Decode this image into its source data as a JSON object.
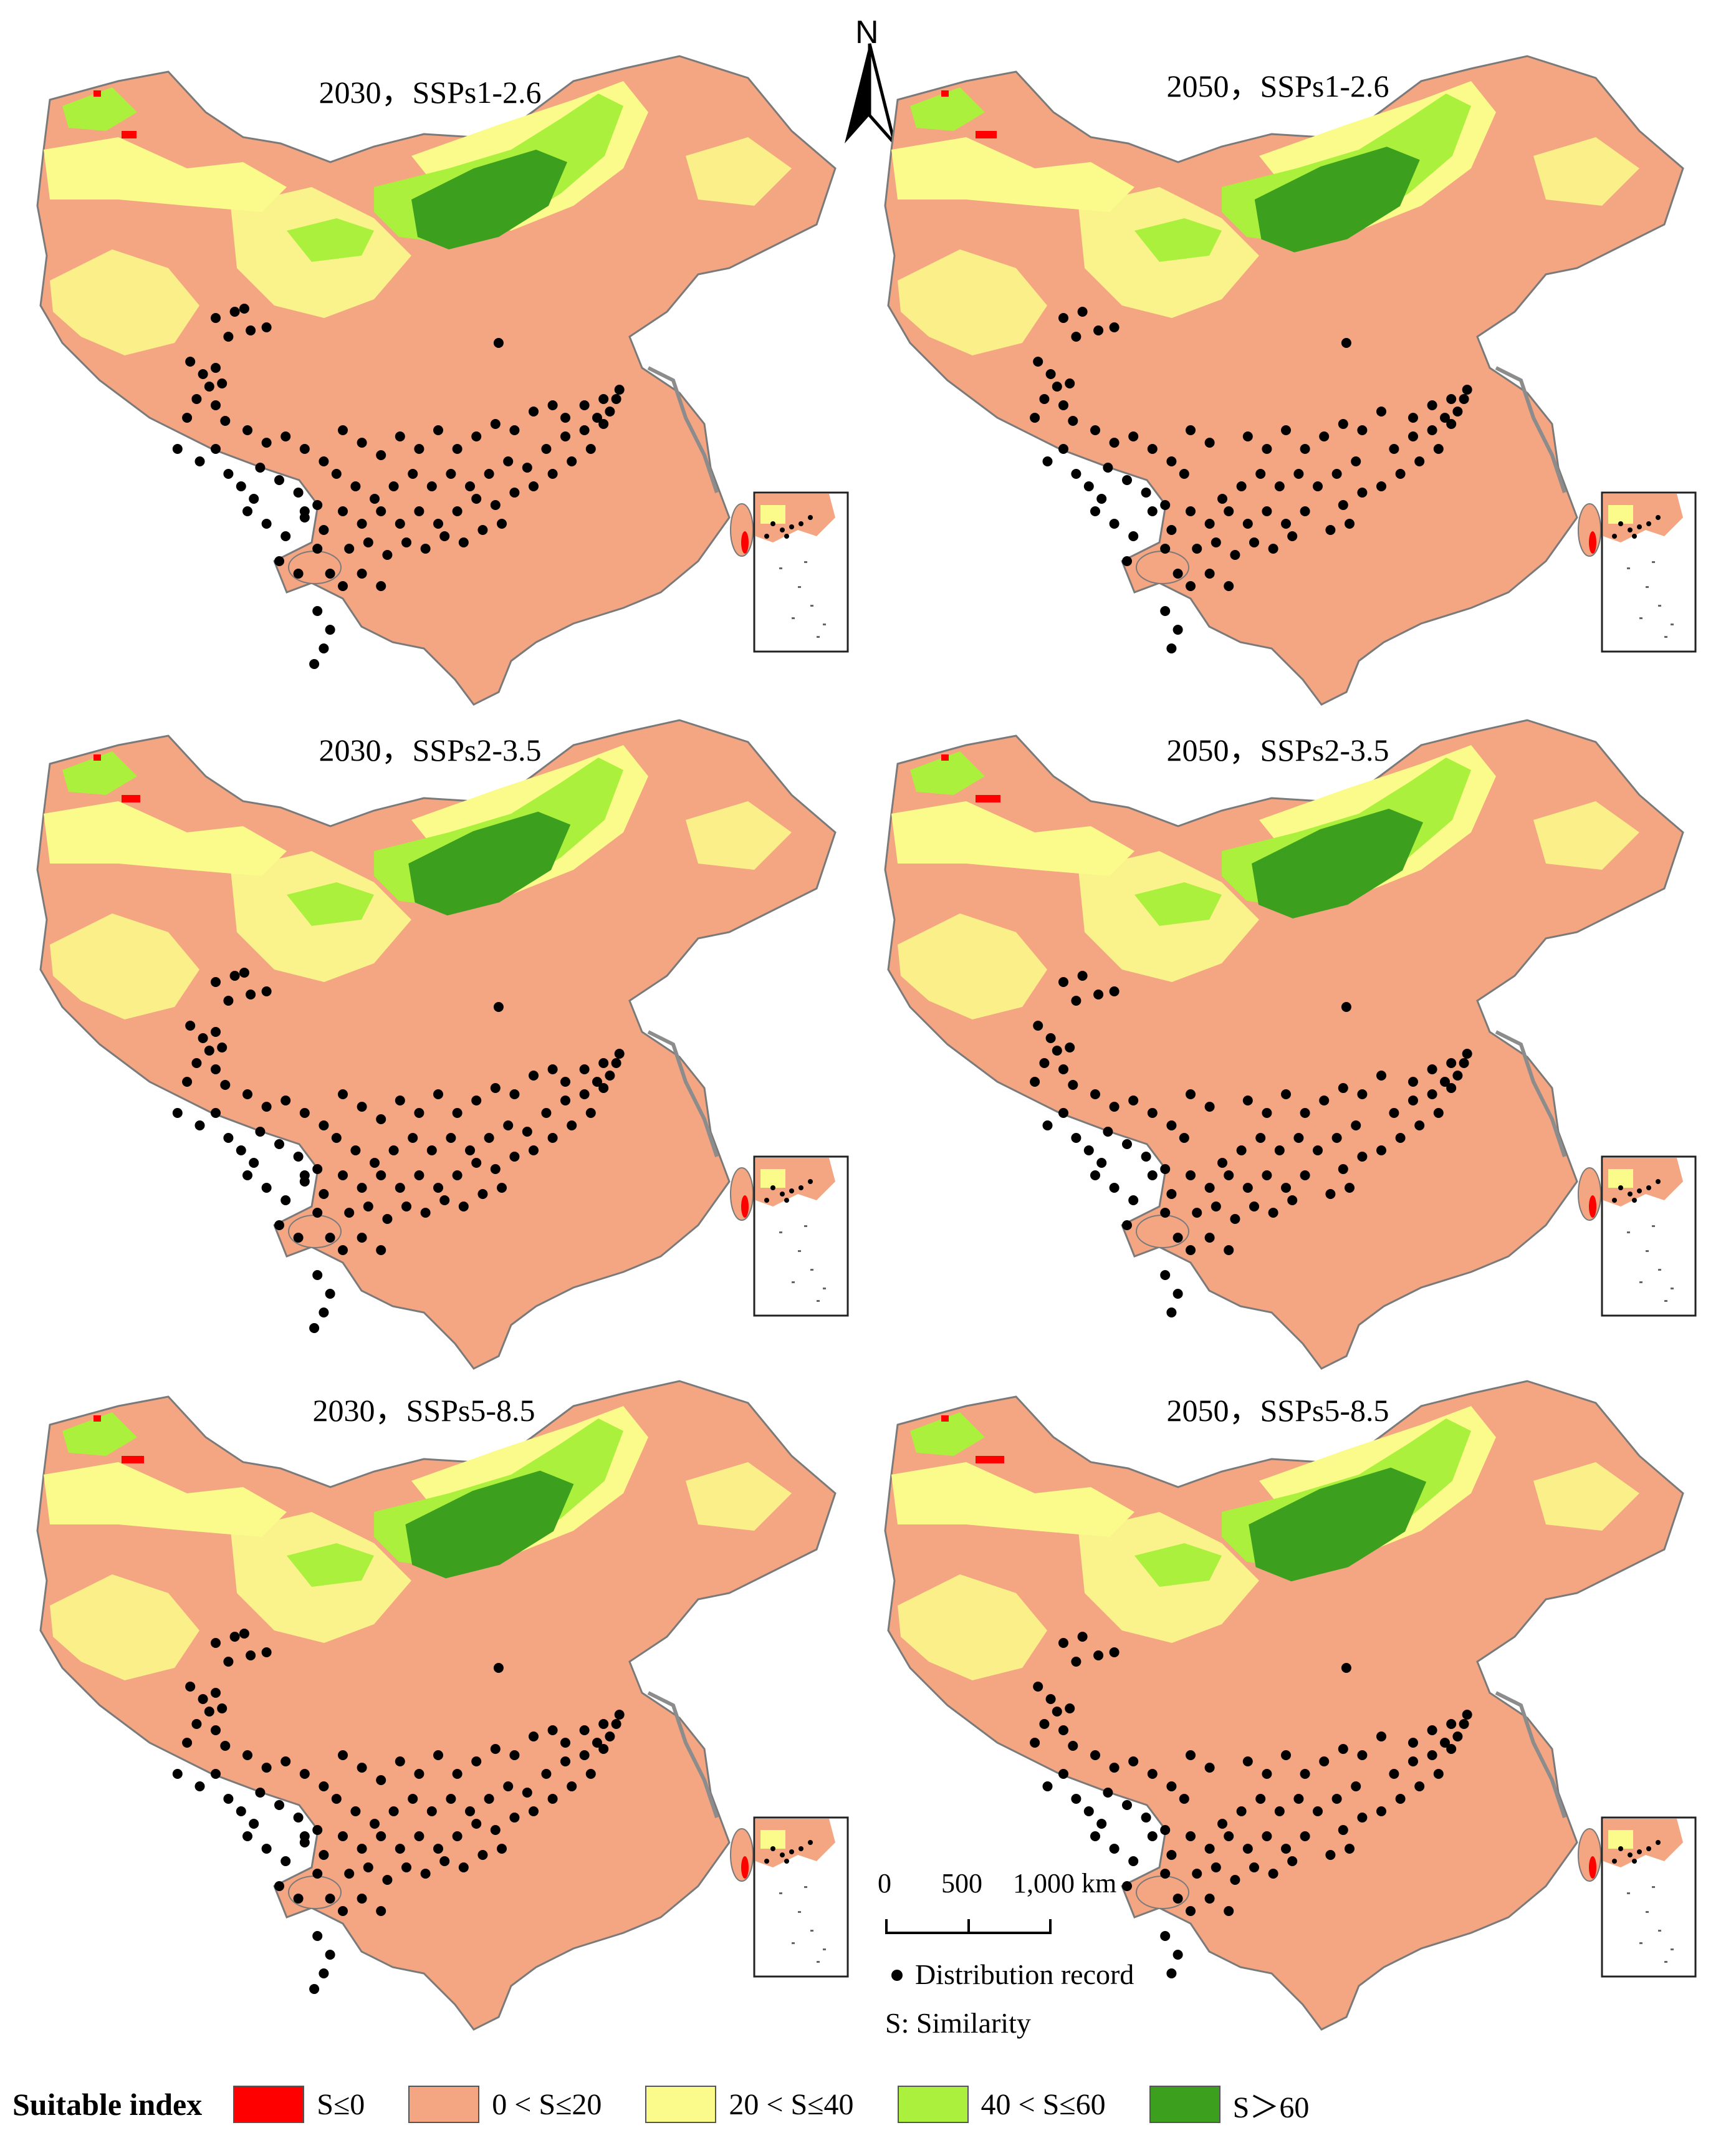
{
  "north_arrow": {
    "label": "N"
  },
  "panels": [
    {
      "title": "2030，SSPs1-2.6",
      "scenario": "SSPs1-2.6",
      "year": "2030"
    },
    {
      "title": "2050，SSPs1-2.6",
      "scenario": "SSPs1-2.6",
      "year": "2050"
    },
    {
      "title": "2030，SSPs2-3.5",
      "scenario": "SSPs2-3.5",
      "year": "2030"
    },
    {
      "title": "2050，SSPs2-3.5",
      "scenario": "SSPs2-3.5",
      "year": "2050"
    },
    {
      "title": "2030，SSPs5-8.5",
      "scenario": "SSPs5-8.5",
      "year": "2030"
    },
    {
      "title": "2050，SSPs5-8.5",
      "scenario": "SSPs5-8.5",
      "year": "2050"
    }
  ],
  "scale_bar": {
    "tick0": "0",
    "tick1": "500",
    "tick2": "1,000 km"
  },
  "map_legend": {
    "record": "Distribution record",
    "similarity": "S: Similarity"
  },
  "legend": {
    "title": "Suitable index",
    "items": [
      {
        "label": "S≤0",
        "color": "#ff0000"
      },
      {
        "label": "0 < S≤20",
        "color": "#f4a582"
      },
      {
        "label": "20 < S≤40",
        "color": "#fbfb8c"
      },
      {
        "label": "40 < S≤60",
        "color": "#aaf03c"
      },
      {
        "label": "S＞60",
        "color": "#3ca01e"
      }
    ]
  },
  "colors": {
    "record_dot": "#000000",
    "border": "#7a7a7a",
    "coast_grey": "#8c8c8c"
  }
}
